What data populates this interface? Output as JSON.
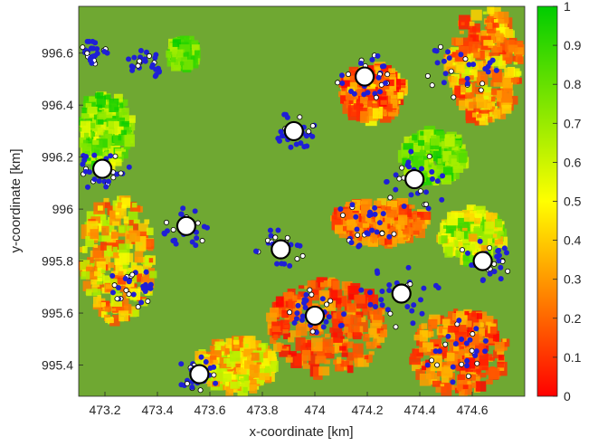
{
  "chart_data": {
    "type": "heatmap",
    "title": "",
    "xlabel": "x-coordinate [km]",
    "ylabel": "y-coordinate [km]",
    "xlim": [
      473.1,
      474.8
    ],
    "ylim": [
      995.28,
      996.78
    ],
    "xticks": [
      473.2,
      473.4,
      473.6,
      473.8,
      474,
      474.2,
      474.4,
      474.6
    ],
    "xtick_labels": [
      "473.2",
      "473.4",
      "473.6",
      "473.8",
      "474",
      "474.2",
      "474.4",
      "474.6"
    ],
    "yticks": [
      995.4,
      995.6,
      995.8,
      996,
      996.2,
      996.4,
      996.6
    ],
    "ytick_labels": [
      "995.4",
      "995.6",
      "995.8",
      "996",
      "996.2",
      "996.4",
      "996.6"
    ],
    "colorbar": {
      "range": [
        0,
        1
      ],
      "ticks": [
        0,
        0.1,
        0.2,
        0.3,
        0.4,
        0.5,
        0.6,
        0.7,
        0.8,
        0.9,
        1
      ],
      "tick_labels": [
        "0",
        "0.1",
        "0.2",
        "0.3",
        "0.4",
        "0.5",
        "0.6",
        "0.7",
        "0.8",
        "0.9",
        "1"
      ],
      "colors": [
        "#ff0000",
        "#ffff00",
        "#00cc00"
      ]
    },
    "background_color": "#6fa832",
    "large_markers": {
      "marker": "white-circle-black-edge",
      "points": [
        {
          "x": 473.19,
          "y": 996.155
        },
        {
          "x": 473.92,
          "y": 996.3
        },
        {
          "x": 474.19,
          "y": 996.51
        },
        {
          "x": 474.38,
          "y": 996.115
        },
        {
          "x": 473.51,
          "y": 995.935
        },
        {
          "x": 473.87,
          "y": 995.845
        },
        {
          "x": 474.64,
          "y": 995.8
        },
        {
          "x": 474.33,
          "y": 995.675
        },
        {
          "x": 474.0,
          "y": 995.59
        },
        {
          "x": 473.56,
          "y": 995.365
        }
      ]
    },
    "small_markers": {
      "blue_color": "#1f1fd6",
      "white_color": "#ffffff"
    }
  }
}
